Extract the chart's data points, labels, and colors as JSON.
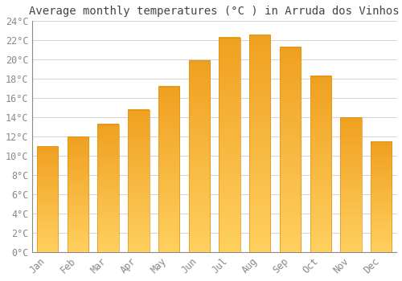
{
  "months": [
    "Jan",
    "Feb",
    "Mar",
    "Apr",
    "May",
    "Jun",
    "Jul",
    "Aug",
    "Sep",
    "Oct",
    "Nov",
    "Dec"
  ],
  "temperatures": [
    11.0,
    12.0,
    13.3,
    14.8,
    17.2,
    19.9,
    22.3,
    22.6,
    21.3,
    18.3,
    14.0,
    11.5
  ],
  "bar_color_top": "#F0A020",
  "bar_color_bottom": "#FFD060",
  "bar_edge_color": "#E09010",
  "background_color": "#FFFFFF",
  "plot_bg_color": "#FFFFFF",
  "grid_color": "#CCCCCC",
  "title": "Average monthly temperatures (°C ) in Arruda dos Vinhos",
  "title_fontsize": 10,
  "title_font": "monospace",
  "axis_font": "monospace",
  "tick_fontsize": 8.5,
  "tick_color": "#888888",
  "ylim": [
    0,
    24
  ],
  "yticks": [
    0,
    2,
    4,
    6,
    8,
    10,
    12,
    14,
    16,
    18,
    20,
    22,
    24
  ],
  "ytick_labels": [
    "0°C",
    "2°C",
    "4°C",
    "6°C",
    "8°C",
    "10°C",
    "12°C",
    "14°C",
    "16°C",
    "18°C",
    "20°C",
    "22°C",
    "24°C"
  ]
}
